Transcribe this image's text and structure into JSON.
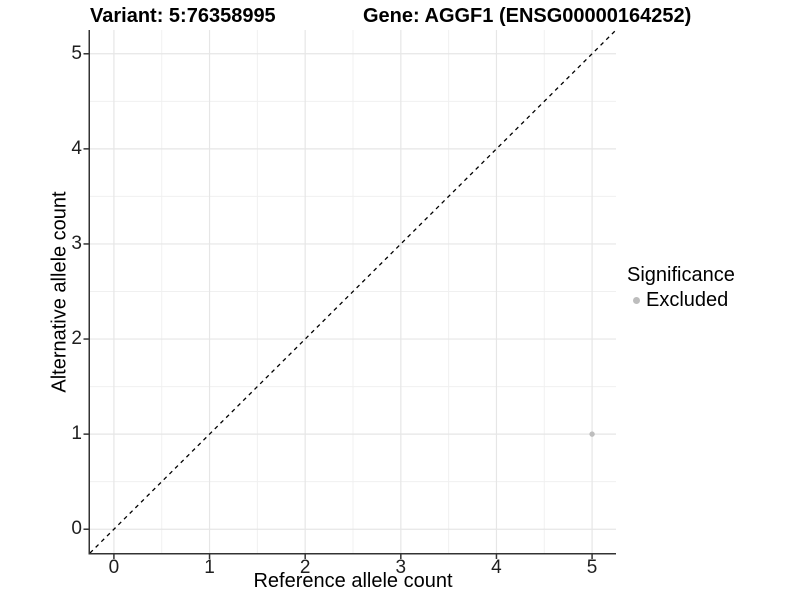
{
  "titles": {
    "variant": "Variant: 5:76358995",
    "gene": "Gene: AGGF1 (ENSG00000164252)"
  },
  "chart_data": {
    "type": "scatter",
    "title_left": "Variant: 5:76358995",
    "title_right": "Gene: AGGF1 (ENSG00000164252)",
    "xlabel": "Reference allele count",
    "ylabel": "Alternative allele count",
    "xlim": [
      -0.25,
      5.25
    ],
    "ylim": [
      -0.25,
      5.25
    ],
    "x_ticks": [
      0,
      1,
      2,
      3,
      4,
      5
    ],
    "y_ticks": [
      0,
      1,
      2,
      3,
      4,
      5
    ],
    "x_minor_ticks": [
      0.5,
      1.5,
      2.5,
      3.5,
      4.5
    ],
    "y_minor_ticks": [
      0.5,
      1.5,
      2.5,
      3.5,
      4.5
    ],
    "grid": "major and minor, light gray on white",
    "identity_line": {
      "slope": 1,
      "intercept": 0,
      "style": "dashed",
      "color": "#000000"
    },
    "points": [
      {
        "x": 5,
        "y": 1,
        "significance": "Excluded"
      }
    ],
    "legend": {
      "title": "Significance",
      "position": "right",
      "items": [
        {
          "label": "Excluded",
          "color": "#bdbdbd"
        }
      ]
    }
  },
  "colors": {
    "background": "#ffffff",
    "grid_major": "#e6e6e6",
    "grid_minor": "#f0f0f0",
    "axis_line": "#333333",
    "tick_mark": "#333333",
    "tick_text": "#1f1f1f",
    "point": "#bdbdbd",
    "dashed_line": "#000000"
  }
}
